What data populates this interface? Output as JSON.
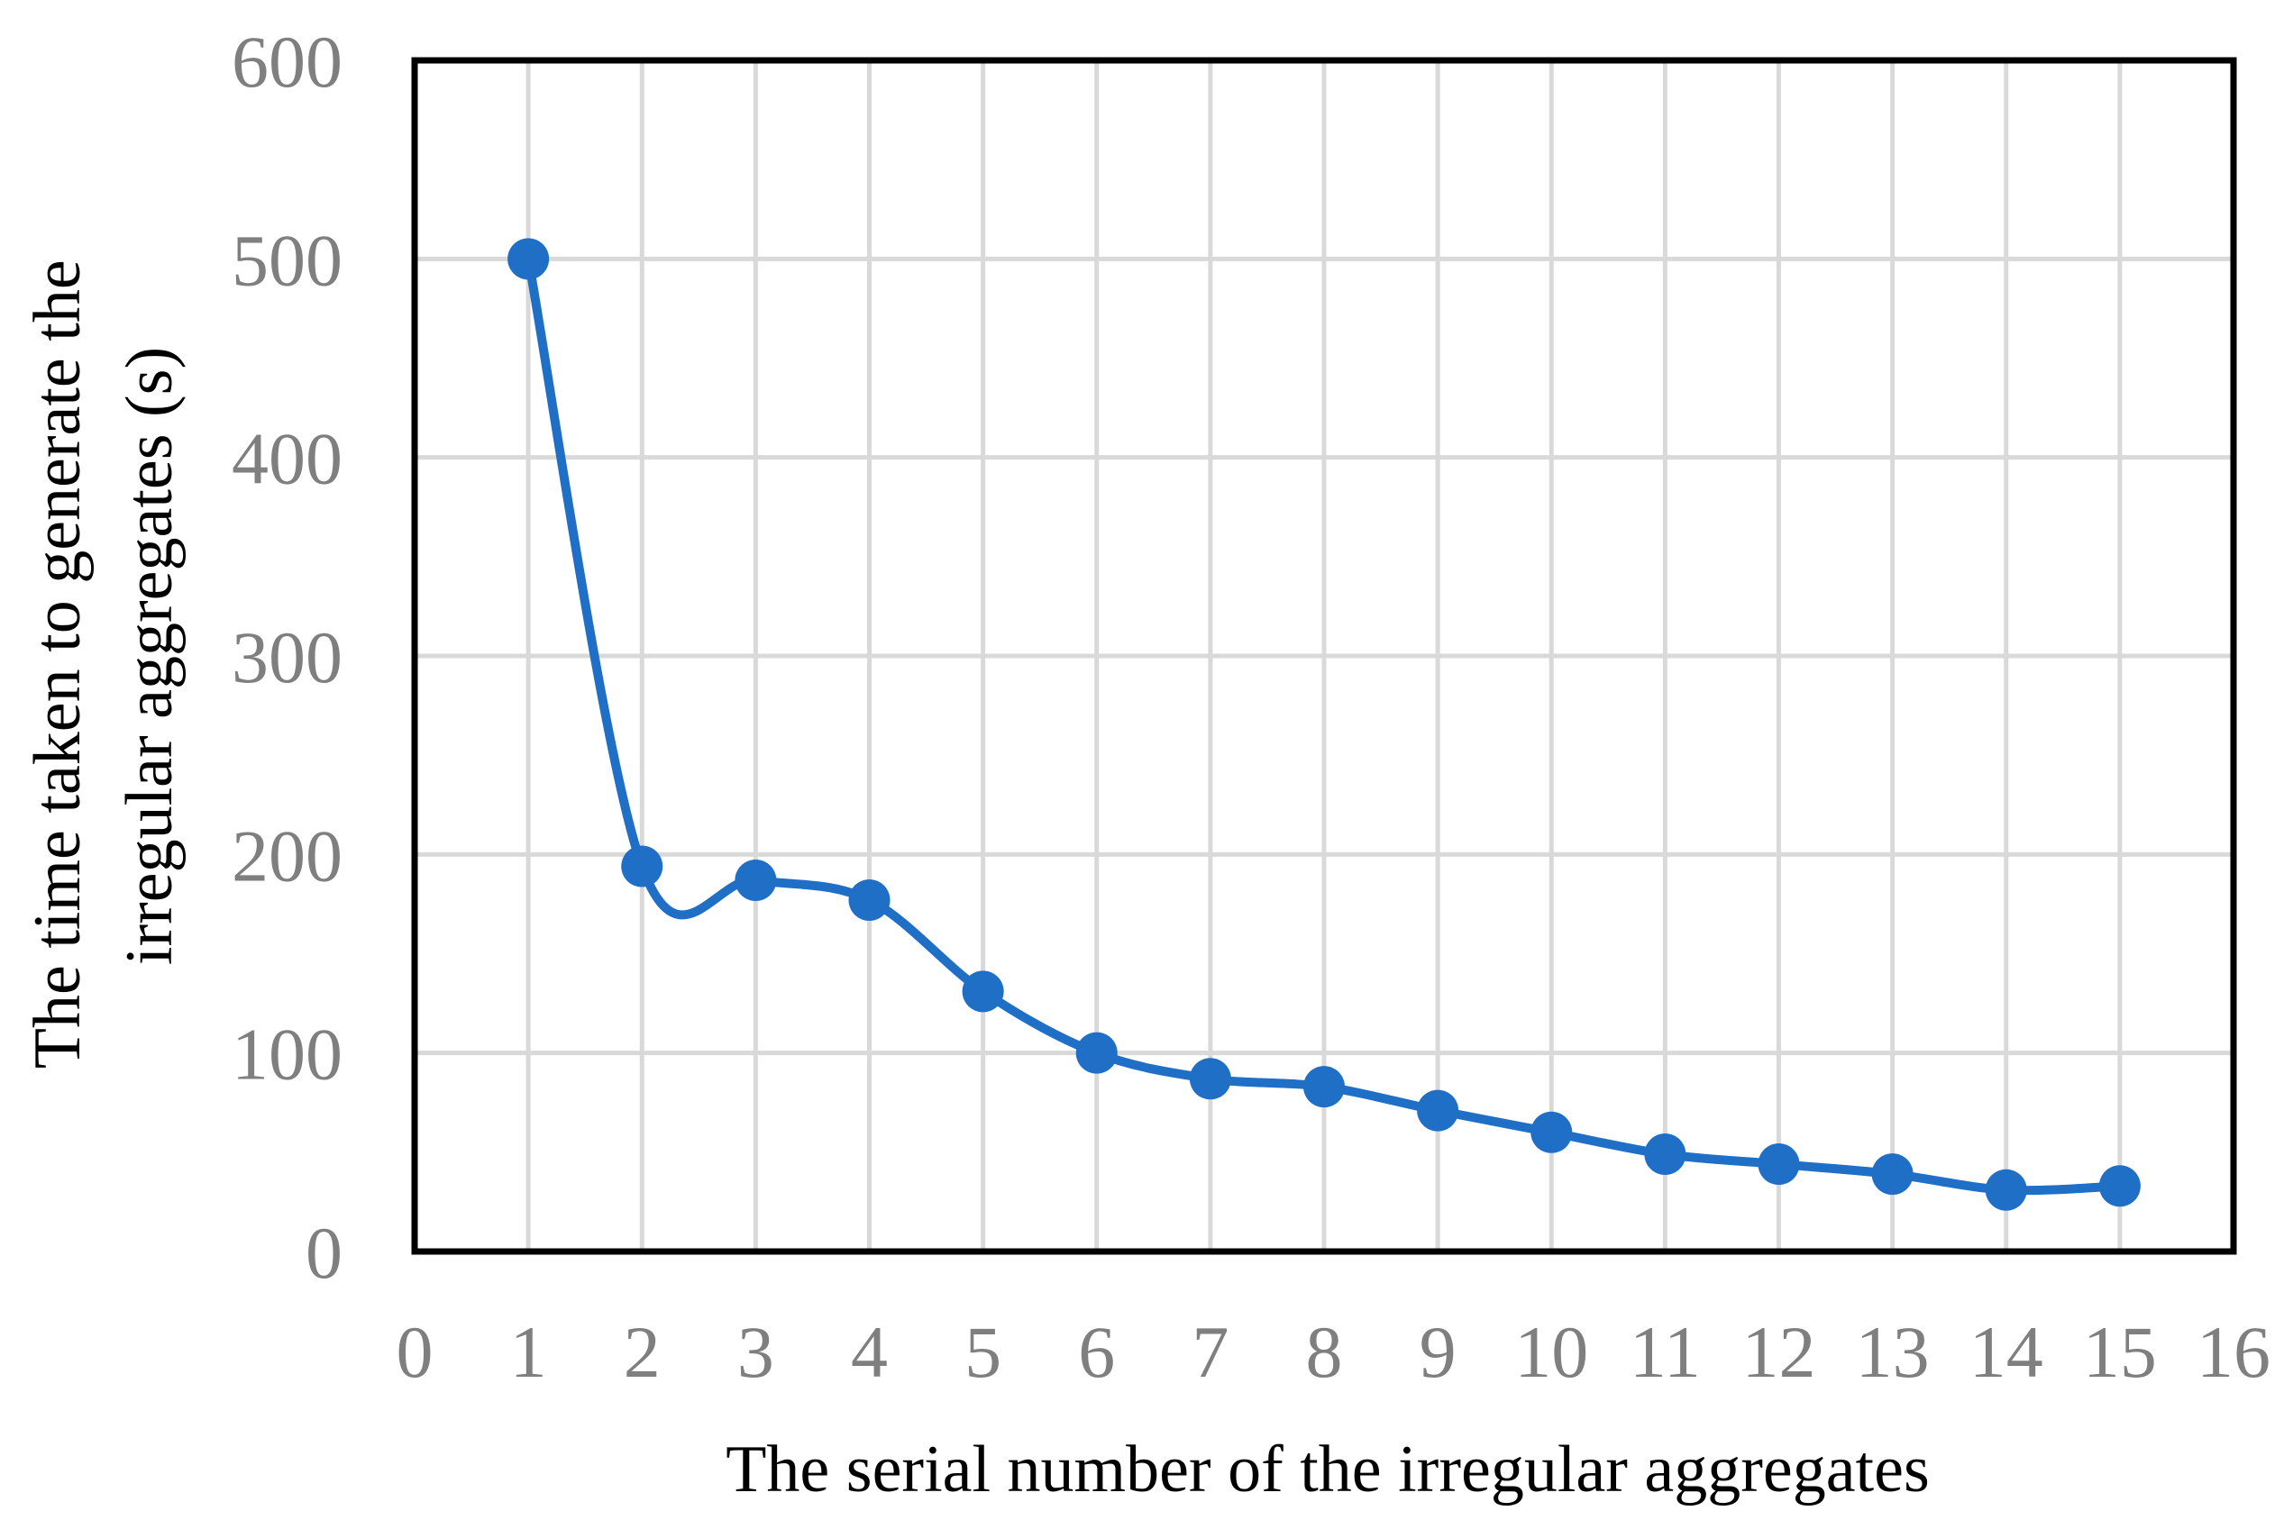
{
  "chart_data": {
    "type": "line",
    "smooth": true,
    "title": "",
    "xlabel": "The serial number of the irregular aggregates",
    "ylabel_lines": [
      "The time taken to generate the",
      "irregular aggregates (s)"
    ],
    "xlim": [
      0,
      16
    ],
    "ylim": [
      0,
      600
    ],
    "x_ticks": [
      "0",
      "1",
      "2",
      "3",
      "4",
      "5",
      "6",
      "7",
      "8",
      "9",
      "10",
      "11",
      "12",
      "13",
      "14",
      "15",
      "16"
    ],
    "y_ticks": [
      "0",
      "100",
      "200",
      "300",
      "400",
      "500",
      "600"
    ],
    "grid": true,
    "legend": "none",
    "series": [
      {
        "color": "#1f6fc6",
        "x": [
          1,
          2,
          3,
          4,
          5,
          6,
          7,
          8,
          9,
          10,
          11,
          12,
          13,
          14,
          15
        ],
        "y": [
          500,
          194,
          187,
          177,
          131,
          100,
          87,
          83,
          71,
          60,
          49,
          44,
          39,
          31,
          33
        ]
      }
    ]
  }
}
